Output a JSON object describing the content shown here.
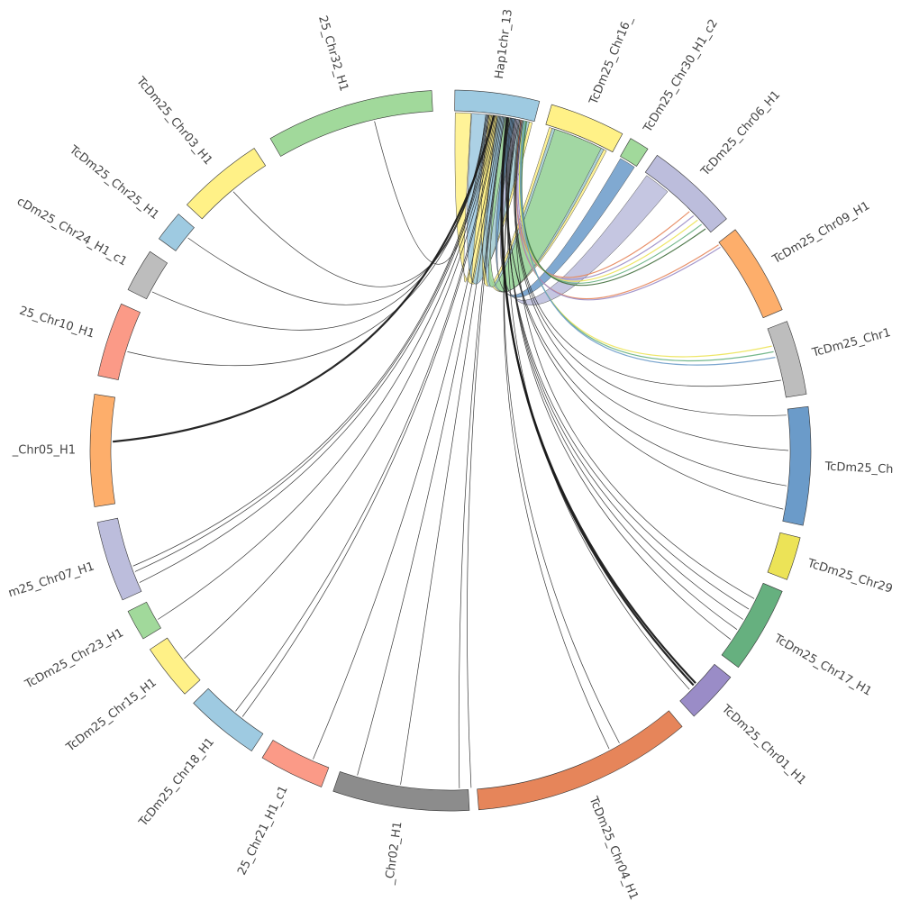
{
  "segments": [
    {
      "label": "Hap1chr_13",
      "color": "#9ecae1"
    },
    {
      "label": "TcDm25_Chr16_",
      "color": "#fff187"
    },
    {
      "label": "TcDm25_Chr30_H1_c2",
      "color": "#a1d99b"
    },
    {
      "label": "TcDm25_Chr06_H1",
      "color": "#bcbddc"
    },
    {
      "label": "TcDm25_Chr09_H1",
      "color": "#fdae6b"
    },
    {
      "label": "TcDm25_Chr1",
      "color": "#bdbdbd"
    },
    {
      "label": "TcDm25_Ch",
      "color": "#6b9bc9"
    },
    {
      "label": "TcDm25_Chr29",
      "color": "#ece357"
    },
    {
      "label": "TcDm25_Chr17_H1",
      "color": "#66b07f"
    },
    {
      "label": "TcDm25_Chr01_H1",
      "color": "#9a8cc7"
    },
    {
      "label": "TcDm25_Chr04_H1",
      "color": "#e6855a"
    },
    {
      "label": "_Chr02_H1",
      "color": "#8c8c8c"
    },
    {
      "label": "25_Chr21_H1_c1",
      "color": "#fb9a87"
    },
    {
      "label": "TcDm25_Chr18_H1",
      "color": "#9ecae1"
    },
    {
      "label": "TcDm25_Chr15_H1",
      "color": "#fff187"
    },
    {
      "label": "TcDm25_Chr23_H1",
      "color": "#a1d99b"
    },
    {
      "label": "m25_Chr07_H1",
      "color": "#bcbddc"
    },
    {
      "label": "_Chr05_H1",
      "color": "#fdae6b"
    },
    {
      "label": "25_Chr10_H1",
      "color": "#fb9a87"
    },
    {
      "label": "cDm25_Chr24_H1_c1",
      "color": "#bdbdbd"
    },
    {
      "label": "TcDm25_Chr25_H1",
      "color": "#9ecae1"
    },
    {
      "label": "TcDm25_Chr03_H1",
      "color": "#fff187"
    },
    {
      "label": "25_Chr32_H1",
      "color": "#a1d99b"
    }
  ]
}
